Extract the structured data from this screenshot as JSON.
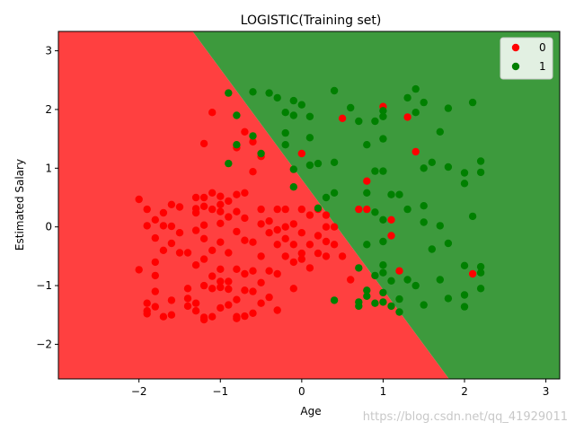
{
  "chart_data": {
    "type": "scatter",
    "title": "LOGISTIC(Training set)",
    "xlabel": "Age",
    "ylabel": "Estimated Salary",
    "xlim": [
      -2.99,
      3.17
    ],
    "ylim": [
      -2.59,
      3.33
    ],
    "xticks": [
      -2,
      -1,
      0,
      1,
      2,
      3
    ],
    "yticks": [
      -2,
      -1,
      0,
      1,
      2,
      3
    ],
    "tick_labels": {
      "x": [
        "−2",
        "−1",
        "0",
        "1",
        "2",
        "3"
      ],
      "y": [
        "−2",
        "−1",
        "0",
        "1",
        "2",
        "3"
      ]
    },
    "grid": false,
    "legend_position": "top-right",
    "decision_boundary": {
      "description": "line separating class regions",
      "points": [
        [
          -1.34,
          3.33
        ],
        [
          1.81,
          -2.59
        ]
      ],
      "region_colors": {
        "0": "#ff4040",
        "1": "#3d9a3d"
      }
    },
    "series": [
      {
        "name": "0",
        "color": "#ff0000",
        "points": [
          [
            -2.0,
            0.47
          ],
          [
            -1.9,
            0.3
          ],
          [
            -1.9,
            0.02
          ],
          [
            -2.0,
            -0.73
          ],
          [
            -1.9,
            -1.3
          ],
          [
            -1.9,
            -1.43
          ],
          [
            -1.9,
            -1.48
          ],
          [
            -1.8,
            0.12
          ],
          [
            -1.8,
            -0.19
          ],
          [
            -1.8,
            -0.6
          ],
          [
            -1.8,
            -0.83
          ],
          [
            -1.8,
            -1.1
          ],
          [
            -1.8,
            -1.36
          ],
          [
            -1.7,
            0.24
          ],
          [
            -1.7,
            0.02
          ],
          [
            -1.7,
            -0.4
          ],
          [
            -1.7,
            -1.53
          ],
          [
            -1.6,
            0.38
          ],
          [
            -1.6,
            0.01
          ],
          [
            -1.6,
            -0.28
          ],
          [
            -1.6,
            -1.25
          ],
          [
            -1.6,
            -1.5
          ],
          [
            -1.5,
            0.34
          ],
          [
            -1.5,
            -0.1
          ],
          [
            -1.5,
            -0.44
          ],
          [
            -1.4,
            -0.44
          ],
          [
            -1.4,
            -1.05
          ],
          [
            -1.4,
            -1.22
          ],
          [
            -1.4,
            -1.35
          ],
          [
            -1.3,
            0.5
          ],
          [
            -1.3,
            0.31
          ],
          [
            -1.3,
            0.24
          ],
          [
            -1.3,
            -0.06
          ],
          [
            -1.3,
            -0.65
          ],
          [
            -1.3,
            -1.3
          ],
          [
            -1.3,
            -1.43
          ],
          [
            -1.2,
            0.5
          ],
          [
            -1.2,
            0.35
          ],
          [
            -1.2,
            0.03
          ],
          [
            -1.2,
            -0.2
          ],
          [
            -1.2,
            -0.55
          ],
          [
            -1.2,
            -1.0
          ],
          [
            -1.2,
            -1.54
          ],
          [
            -1.2,
            -1.58
          ],
          [
            -1.1,
            0.58
          ],
          [
            -1.1,
            0.3
          ],
          [
            -1.1,
            -0.4
          ],
          [
            -1.1,
            -0.84
          ],
          [
            -1.1,
            -1.05
          ],
          [
            -1.1,
            -1.53
          ],
          [
            -1.0,
            0.52
          ],
          [
            -1.0,
            0.38
          ],
          [
            -1.0,
            0.26
          ],
          [
            -1.0,
            0.06
          ],
          [
            -1.0,
            -0.26
          ],
          [
            -1.0,
            -0.72
          ],
          [
            -1.0,
            -0.93
          ],
          [
            -1.0,
            -1.03
          ],
          [
            -1.0,
            -1.38
          ],
          [
            -0.9,
            0.44
          ],
          [
            -0.9,
            0.17
          ],
          [
            -0.9,
            -0.44
          ],
          [
            -0.9,
            -0.93
          ],
          [
            -0.9,
            -1.06
          ],
          [
            -0.9,
            -1.33
          ],
          [
            -1.2,
            1.42
          ],
          [
            -1.1,
            1.95
          ],
          [
            -0.8,
            1.35
          ],
          [
            -0.8,
            0.55
          ],
          [
            -0.8,
            0.26
          ],
          [
            -0.8,
            -0.08
          ],
          [
            -0.8,
            -0.72
          ],
          [
            -0.8,
            -1.24
          ],
          [
            -0.8,
            -1.56
          ],
          [
            -0.8,
            -1.53
          ],
          [
            -0.7,
            1.62
          ],
          [
            -0.7,
            0.58
          ],
          [
            -0.7,
            0.15
          ],
          [
            -0.7,
            -0.23
          ],
          [
            -0.7,
            -0.8
          ],
          [
            -0.7,
            -1.52
          ],
          [
            -0.7,
            -1.08
          ],
          [
            -0.6,
            1.45
          ],
          [
            -0.6,
            0.94
          ],
          [
            -0.6,
            -0.26
          ],
          [
            -0.6,
            -0.75
          ],
          [
            -0.6,
            -1.1
          ],
          [
            -0.6,
            -1.47
          ],
          [
            -0.5,
            1.2
          ],
          [
            -0.5,
            0.3
          ],
          [
            -0.5,
            0.05
          ],
          [
            -0.5,
            -0.5
          ],
          [
            -0.5,
            -0.95
          ],
          [
            -0.5,
            -1.3
          ],
          [
            -0.4,
            0.1
          ],
          [
            -0.4,
            -0.1
          ],
          [
            -0.4,
            -0.75
          ],
          [
            -0.4,
            -1.2
          ],
          [
            -0.3,
            0.3
          ],
          [
            -0.3,
            -0.05
          ],
          [
            -0.3,
            -0.3
          ],
          [
            -0.3,
            -0.8
          ],
          [
            -0.3,
            -1.42
          ],
          [
            -0.2,
            0.3
          ],
          [
            -0.2,
            0.0
          ],
          [
            -0.2,
            -0.2
          ],
          [
            -0.2,
            -0.5
          ],
          [
            -0.1,
            0.05
          ],
          [
            -0.1,
            -0.3
          ],
          [
            -0.1,
            -0.6
          ],
          [
            -0.1,
            -1.05
          ],
          [
            0.0,
            1.25
          ],
          [
            0.0,
            0.3
          ],
          [
            0.0,
            -0.1
          ],
          [
            0.0,
            -0.45
          ],
          [
            0.0,
            -0.55
          ],
          [
            0.1,
            0.2
          ],
          [
            0.1,
            -0.3
          ],
          [
            0.1,
            -0.7
          ],
          [
            0.2,
            0.3
          ],
          [
            0.2,
            -0.15
          ],
          [
            0.2,
            -0.45
          ],
          [
            0.3,
            0.2
          ],
          [
            0.3,
            0.0
          ],
          [
            0.3,
            -0.25
          ],
          [
            0.3,
            -0.5
          ],
          [
            0.4,
            0.0
          ],
          [
            0.4,
            -0.3
          ],
          [
            0.5,
            1.85
          ],
          [
            0.5,
            -0.5
          ],
          [
            0.7,
            0.3
          ],
          [
            0.8,
            0.78
          ],
          [
            0.8,
            0.3
          ],
          [
            1.0,
            2.05
          ],
          [
            1.1,
            0.12
          ],
          [
            1.1,
            -0.15
          ],
          [
            1.2,
            -0.75
          ],
          [
            1.3,
            1.87
          ],
          [
            1.4,
            1.28
          ],
          [
            2.1,
            -0.8
          ],
          [
            0.6,
            -0.9
          ]
        ]
      },
      {
        "name": "1",
        "color": "#008000",
        "points": [
          [
            -0.9,
            2.28
          ],
          [
            -0.9,
            1.08
          ],
          [
            -0.8,
            1.9
          ],
          [
            -0.8,
            1.4
          ],
          [
            -0.6,
            2.3
          ],
          [
            -0.6,
            1.55
          ],
          [
            -0.5,
            1.25
          ],
          [
            -0.4,
            2.28
          ],
          [
            -0.3,
            2.2
          ],
          [
            -0.2,
            1.95
          ],
          [
            -0.2,
            1.6
          ],
          [
            -0.2,
            1.4
          ],
          [
            -0.1,
            2.15
          ],
          [
            -0.1,
            1.9
          ],
          [
            -0.1,
            0.98
          ],
          [
            -0.1,
            0.68
          ],
          [
            0.0,
            2.08
          ],
          [
            0.1,
            1.88
          ],
          [
            0.1,
            1.52
          ],
          [
            0.1,
            1.05
          ],
          [
            0.2,
            1.08
          ],
          [
            0.2,
            0.32
          ],
          [
            0.3,
            0.5
          ],
          [
            0.4,
            2.32
          ],
          [
            0.4,
            1.1
          ],
          [
            0.4,
            0.58
          ],
          [
            0.6,
            2.03
          ],
          [
            0.7,
            1.8
          ],
          [
            0.8,
            1.4
          ],
          [
            0.8,
            0.58
          ],
          [
            0.8,
            -0.3
          ],
          [
            0.8,
            -1.18
          ],
          [
            0.9,
            1.8
          ],
          [
            0.9,
            0.95
          ],
          [
            0.9,
            0.25
          ],
          [
            0.9,
            -1.3
          ],
          [
            1.0,
            1.98
          ],
          [
            1.0,
            1.88
          ],
          [
            1.0,
            1.5
          ],
          [
            1.0,
            0.95
          ],
          [
            1.0,
            0.12
          ],
          [
            1.0,
            -0.25
          ],
          [
            1.0,
            -0.65
          ],
          [
            1.0,
            -1.12
          ],
          [
            1.1,
            0.55
          ],
          [
            1.1,
            -0.92
          ],
          [
            1.2,
            0.55
          ],
          [
            1.2,
            -1.45
          ],
          [
            1.3,
            2.2
          ],
          [
            1.3,
            0.3
          ],
          [
            1.3,
            -0.9
          ],
          [
            1.4,
            2.35
          ],
          [
            1.4,
            1.95
          ],
          [
            1.4,
            -1.0
          ],
          [
            1.5,
            2.12
          ],
          [
            1.5,
            1.0
          ],
          [
            1.5,
            0.36
          ],
          [
            1.5,
            0.08
          ],
          [
            1.5,
            -1.33
          ],
          [
            1.6,
            1.1
          ],
          [
            1.6,
            -0.38
          ],
          [
            1.7,
            1.62
          ],
          [
            1.7,
            0.02
          ],
          [
            1.7,
            -0.9
          ],
          [
            1.8,
            1.02
          ],
          [
            1.8,
            -0.28
          ],
          [
            1.8,
            -1.22
          ],
          [
            2.0,
            0.92
          ],
          [
            2.0,
            -0.66
          ],
          [
            2.0,
            -1.16
          ],
          [
            2.0,
            -1.36
          ],
          [
            2.1,
            2.12
          ],
          [
            2.1,
            0.18
          ],
          [
            2.2,
            1.12
          ],
          [
            2.2,
            0.93
          ],
          [
            2.2,
            -0.68
          ],
          [
            2.2,
            -0.78
          ],
          [
            2.2,
            -1.05
          ],
          [
            0.4,
            -1.25
          ],
          [
            0.7,
            -0.7
          ],
          [
            0.7,
            -1.35
          ],
          [
            0.7,
            -1.28
          ],
          [
            0.8,
            -1.08
          ],
          [
            0.9,
            -0.83
          ],
          [
            1.0,
            -1.28
          ],
          [
            1.1,
            -1.35
          ],
          [
            1.2,
            -1.23
          ],
          [
            1.0,
            -0.78
          ],
          [
            2.0,
            0.74
          ],
          [
            1.8,
            2.02
          ]
        ]
      }
    ]
  },
  "watermark": "https://blog.csdn.net/qq_41929011"
}
